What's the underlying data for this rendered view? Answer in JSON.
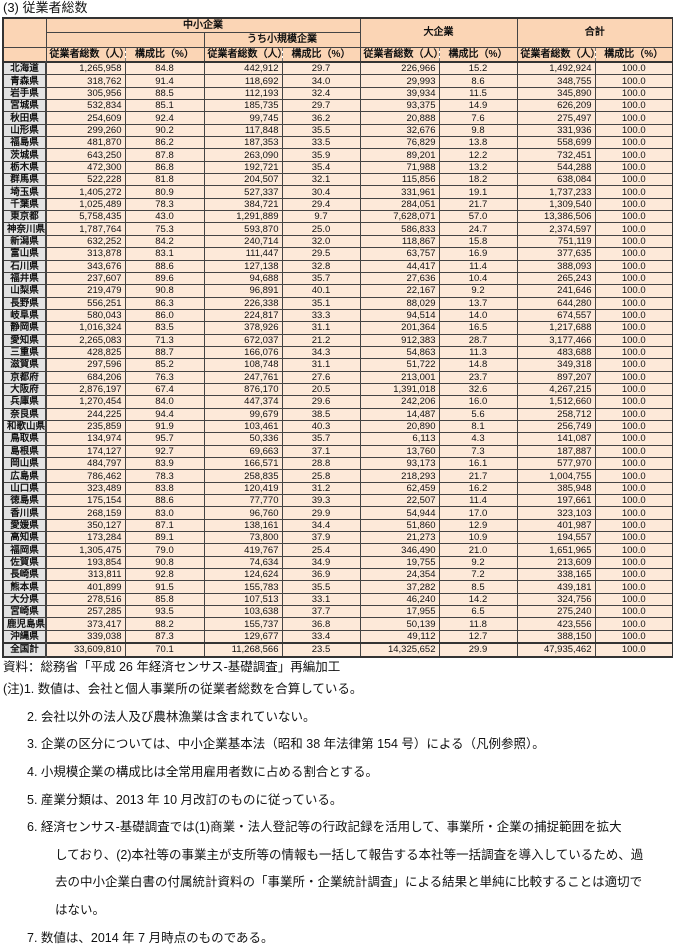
{
  "title": "(3) 従業者総数",
  "table": {
    "groups": {
      "sme": "中小企業",
      "small": "うち小規模企業",
      "large": "大企業",
      "total": "合計"
    },
    "col_count": "従業者総数（人）",
    "col_ratio": "構成比（%）",
    "rows": [
      [
        "北海道",
        "1,265,958",
        "84.8",
        "442,912",
        "29.7",
        "226,966",
        "15.2",
        "1,492,924",
        "100.0"
      ],
      [
        "青森県",
        "318,762",
        "91.4",
        "118,692",
        "34.0",
        "29,993",
        "8.6",
        "348,755",
        "100.0"
      ],
      [
        "岩手県",
        "305,956",
        "88.5",
        "112,193",
        "32.4",
        "39,934",
        "11.5",
        "345,890",
        "100.0"
      ],
      [
        "宮城県",
        "532,834",
        "85.1",
        "185,735",
        "29.7",
        "93,375",
        "14.9",
        "626,209",
        "100.0"
      ],
      [
        "秋田県",
        "254,609",
        "92.4",
        "99,745",
        "36.2",
        "20,888",
        "7.6",
        "275,497",
        "100.0"
      ],
      [
        "山形県",
        "299,260",
        "90.2",
        "117,848",
        "35.5",
        "32,676",
        "9.8",
        "331,936",
        "100.0"
      ],
      [
        "福島県",
        "481,870",
        "86.2",
        "187,353",
        "33.5",
        "76,829",
        "13.8",
        "558,699",
        "100.0"
      ],
      [
        "茨城県",
        "643,250",
        "87.8",
        "263,090",
        "35.9",
        "89,201",
        "12.2",
        "732,451",
        "100.0"
      ],
      [
        "栃木県",
        "472,300",
        "86.8",
        "192,721",
        "35.4",
        "71,988",
        "13.2",
        "544,288",
        "100.0"
      ],
      [
        "群馬県",
        "522,228",
        "81.8",
        "204,507",
        "32.1",
        "115,856",
        "18.2",
        "638,084",
        "100.0"
      ],
      [
        "埼玉県",
        "1,405,272",
        "80.9",
        "527,337",
        "30.4",
        "331,961",
        "19.1",
        "1,737,233",
        "100.0"
      ],
      [
        "千葉県",
        "1,025,489",
        "78.3",
        "384,721",
        "29.4",
        "284,051",
        "21.7",
        "1,309,540",
        "100.0"
      ],
      [
        "東京都",
        "5,758,435",
        "43.0",
        "1,291,889",
        "9.7",
        "7,628,071",
        "57.0",
        "13,386,506",
        "100.0"
      ],
      [
        "神奈川県",
        "1,787,764",
        "75.3",
        "593,870",
        "25.0",
        "586,833",
        "24.7",
        "2,374,597",
        "100.0"
      ],
      [
        "新潟県",
        "632,252",
        "84.2",
        "240,714",
        "32.0",
        "118,867",
        "15.8",
        "751,119",
        "100.0"
      ],
      [
        "富山県",
        "313,878",
        "83.1",
        "111,447",
        "29.5",
        "63,757",
        "16.9",
        "377,635",
        "100.0"
      ],
      [
        "石川県",
        "343,676",
        "88.6",
        "127,138",
        "32.8",
        "44,417",
        "11.4",
        "388,093",
        "100.0"
      ],
      [
        "福井県",
        "237,607",
        "89.6",
        "94,688",
        "35.7",
        "27,636",
        "10.4",
        "265,243",
        "100.0"
      ],
      [
        "山梨県",
        "219,479",
        "90.8",
        "96,891",
        "40.1",
        "22,167",
        "9.2",
        "241,646",
        "100.0"
      ],
      [
        "長野県",
        "556,251",
        "86.3",
        "226,338",
        "35.1",
        "88,029",
        "13.7",
        "644,280",
        "100.0"
      ],
      [
        "岐阜県",
        "580,043",
        "86.0",
        "224,817",
        "33.3",
        "94,514",
        "14.0",
        "674,557",
        "100.0"
      ],
      [
        "静岡県",
        "1,016,324",
        "83.5",
        "378,926",
        "31.1",
        "201,364",
        "16.5",
        "1,217,688",
        "100.0"
      ],
      [
        "愛知県",
        "2,265,083",
        "71.3",
        "672,037",
        "21.2",
        "912,383",
        "28.7",
        "3,177,466",
        "100.0"
      ],
      [
        "三重県",
        "428,825",
        "88.7",
        "166,076",
        "34.3",
        "54,863",
        "11.3",
        "483,688",
        "100.0"
      ],
      [
        "滋賀県",
        "297,596",
        "85.2",
        "108,748",
        "31.1",
        "51,722",
        "14.8",
        "349,318",
        "100.0"
      ],
      [
        "京都府",
        "684,206",
        "76.3",
        "247,761",
        "27.6",
        "213,001",
        "23.7",
        "897,207",
        "100.0"
      ],
      [
        "大阪府",
        "2,876,197",
        "67.4",
        "876,170",
        "20.5",
        "1,391,018",
        "32.6",
        "4,267,215",
        "100.0"
      ],
      [
        "兵庫県",
        "1,270,454",
        "84.0",
        "447,374",
        "29.6",
        "242,206",
        "16.0",
        "1,512,660",
        "100.0"
      ],
      [
        "奈良県",
        "244,225",
        "94.4",
        "99,679",
        "38.5",
        "14,487",
        "5.6",
        "258,712",
        "100.0"
      ],
      [
        "和歌山県",
        "235,859",
        "91.9",
        "103,461",
        "40.3",
        "20,890",
        "8.1",
        "256,749",
        "100.0"
      ],
      [
        "鳥取県",
        "134,974",
        "95.7",
        "50,336",
        "35.7",
        "6,113",
        "4.3",
        "141,087",
        "100.0"
      ],
      [
        "島根県",
        "174,127",
        "92.7",
        "69,663",
        "37.1",
        "13,760",
        "7.3",
        "187,887",
        "100.0"
      ],
      [
        "岡山県",
        "484,797",
        "83.9",
        "166,571",
        "28.8",
        "93,173",
        "16.1",
        "577,970",
        "100.0"
      ],
      [
        "広島県",
        "786,462",
        "78.3",
        "258,835",
        "25.8",
        "218,293",
        "21.7",
        "1,004,755",
        "100.0"
      ],
      [
        "山口県",
        "323,489",
        "83.8",
        "120,419",
        "31.2",
        "62,459",
        "16.2",
        "385,948",
        "100.0"
      ],
      [
        "徳島県",
        "175,154",
        "88.6",
        "77,770",
        "39.3",
        "22,507",
        "11.4",
        "197,661",
        "100.0"
      ],
      [
        "香川県",
        "268,159",
        "83.0",
        "96,760",
        "29.9",
        "54,944",
        "17.0",
        "323,103",
        "100.0"
      ],
      [
        "愛媛県",
        "350,127",
        "87.1",
        "138,161",
        "34.4",
        "51,860",
        "12.9",
        "401,987",
        "100.0"
      ],
      [
        "高知県",
        "173,284",
        "89.1",
        "73,800",
        "37.9",
        "21,273",
        "10.9",
        "194,557",
        "100.0"
      ],
      [
        "福岡県",
        "1,305,475",
        "79.0",
        "419,767",
        "25.4",
        "346,490",
        "21.0",
        "1,651,965",
        "100.0"
      ],
      [
        "佐賀県",
        "193,854",
        "90.8",
        "74,634",
        "34.9",
        "19,755",
        "9.2",
        "213,609",
        "100.0"
      ],
      [
        "長崎県",
        "313,811",
        "92.8",
        "124,624",
        "36.9",
        "24,354",
        "7.2",
        "338,165",
        "100.0"
      ],
      [
        "熊本県",
        "401,899",
        "91.5",
        "155,783",
        "35.5",
        "37,282",
        "8.5",
        "439,181",
        "100.0"
      ],
      [
        "大分県",
        "278,516",
        "85.8",
        "107,513",
        "33.1",
        "46,240",
        "14.2",
        "324,756",
        "100.0"
      ],
      [
        "宮崎県",
        "257,285",
        "93.5",
        "103,638",
        "37.7",
        "17,955",
        "6.5",
        "275,240",
        "100.0"
      ],
      [
        "鹿児島県",
        "373,417",
        "88.2",
        "155,737",
        "36.8",
        "50,139",
        "11.8",
        "423,556",
        "100.0"
      ],
      [
        "沖縄県",
        "339,038",
        "87.3",
        "129,677",
        "33.4",
        "49,112",
        "12.7",
        "388,150",
        "100.0"
      ],
      [
        "全国計",
        "33,609,810",
        "70.1",
        "11,268,566",
        "23.5",
        "14,325,652",
        "29.9",
        "47,935,462",
        "100.0"
      ]
    ]
  },
  "notes": {
    "source": "資料：総務省「平成 26 年経済センサス-基礎調査」再編加工",
    "n1": "(注)1. 数値は、会社と個人事業所の従業者総数を合算している。",
    "n2": "2. 会社以外の法人及び農林漁業は含まれていない。",
    "n3": "3. 企業の区分については、中小企業基本法（昭和 38 年法律第 154 号）による（凡例参照）。",
    "n4": "4. 小規模企業の構成比は全常用雇用者数に占める割合とする。",
    "n5": "5. 産業分類は、2013 年 10 月改訂のものに従っている。",
    "n6": [
      "6. 経済センサス-基礎調査では(1)商業・法人登記等の行政記録を活用して、事業所・企業の捕捉範囲を拡大",
      "しており、(2)本社等の事業主が支所等の情報も一括して報告する本社等一括調査を導入しているため、過",
      "去の中小企業白書の付属統計資料の「事業所・企業統計調査」による結果と単純に比較することは適切で",
      "はない。"
    ],
    "n7": "7. 数値は、2014 年 7 月時点のものである。"
  }
}
